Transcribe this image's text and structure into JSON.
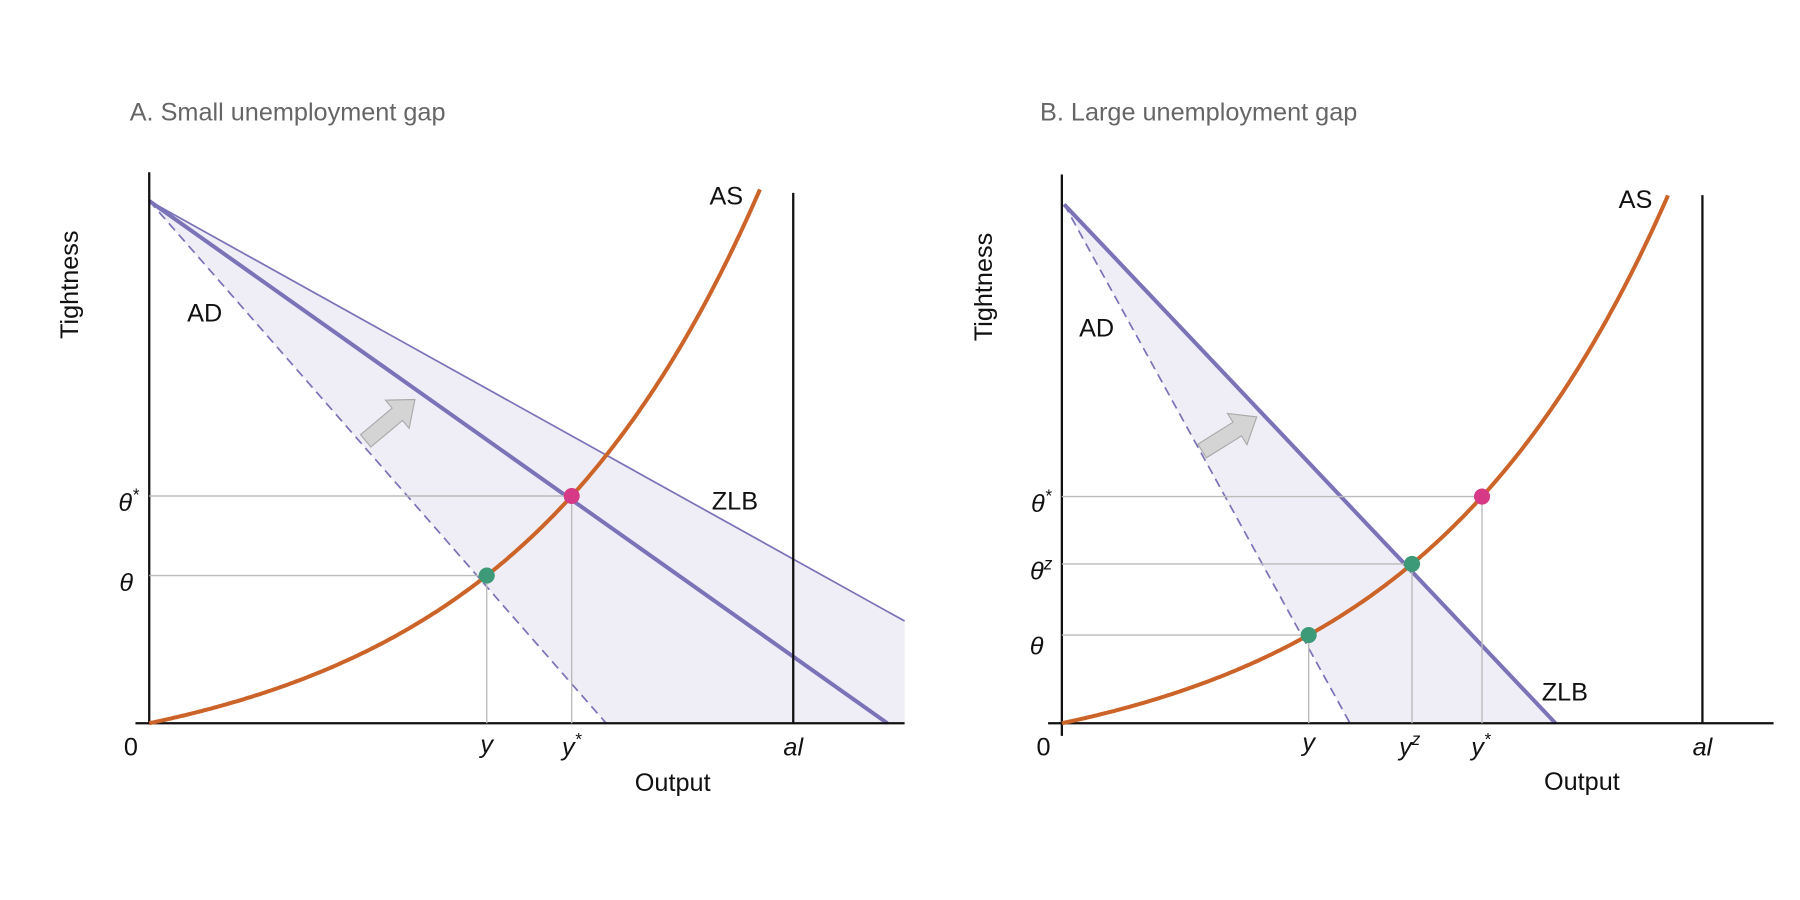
{
  "panels": [
    {
      "title": "A. Small unemployment gap",
      "y_axis_label": "Tightness",
      "x_axis_label": "Output",
      "origin": "0",
      "curves": {
        "ad": "AD",
        "as": "AS",
        "zlb": "ZLB"
      },
      "y_ticks": [
        {
          "base": "θ",
          "sup": "*"
        },
        {
          "base": "θ"
        }
      ],
      "x_ticks": [
        {
          "base": "y"
        },
        {
          "base": "y",
          "sup": "*"
        },
        {
          "base": "al"
        }
      ]
    },
    {
      "title": "B. Large unemployment gap",
      "y_axis_label": "Tightness",
      "x_axis_label": "Output",
      "origin": "0",
      "curves": {
        "ad": "AD",
        "as": "AS",
        "zlb": "ZLB"
      },
      "y_ticks": [
        {
          "base": "θ",
          "sup": "*"
        },
        {
          "base": "θ",
          "sup": "z"
        },
        {
          "base": "θ"
        }
      ],
      "x_ticks": [
        {
          "base": "y"
        },
        {
          "base": "y",
          "sup": "z"
        },
        {
          "base": "y",
          "sup": "*"
        },
        {
          "base": "al"
        }
      ]
    }
  ]
}
